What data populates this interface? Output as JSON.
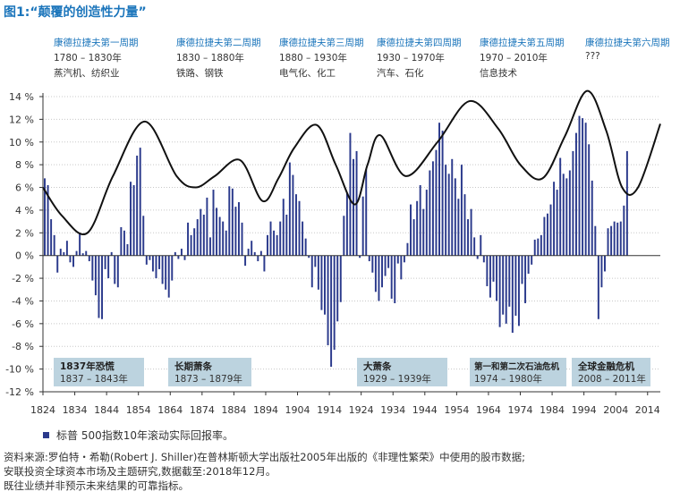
{
  "figure_title": "图1:“颠覆的创造性力量”",
  "waves": [
    {
      "name": "康德拉捷夫第一周期",
      "years": "1780 – 1830年",
      "industry": "蒸汽机、纺织业"
    },
    {
      "name": "康德拉捷夫第二周期",
      "years": "1830 – 1880年",
      "industry": "铁路、钢铁"
    },
    {
      "name": "康德拉捷夫第三周期",
      "years": "1880 – 1930年",
      "industry": "电气化、化工"
    },
    {
      "name": "康德拉捷夫第四周期",
      "years": "1930 – 1970年",
      "industry": "汽车、石化"
    },
    {
      "name": "康德拉捷夫第五周期",
      "years": "1970 – 2010年",
      "industry": "信息技术"
    },
    {
      "name": "康德拉捷夫第六周期",
      "years": "???",
      "industry": ""
    }
  ],
  "crises": [
    {
      "title": "1837年恐慌",
      "years": "1837 – 1843年"
    },
    {
      "title": "长期萧条",
      "years": "1873 – 1879年"
    },
    {
      "title": "大萧条",
      "years": "1929 – 1939年"
    },
    {
      "title": "第一和第二次石油危机",
      "years": "1974 – 1980年"
    },
    {
      "title": "全球金融危机",
      "years": "2008 – 2011年"
    }
  ],
  "legend": "标普 500指数10年滚动实际回报率。",
  "source_lines": [
    "资料来源:罗伯特・希勒(Robert J. Shiller)在普林斯顿大学出版社2005年出版的《非理性繁荣》中使用的股市数据;",
    "安联投资全球资本市场及主题研究,数据截至:2018年12月。",
    "既往业绩并非预示未来结果的可靠指标。"
  ],
  "colors": {
    "bars": "#2b3a8c",
    "curve": "#111111",
    "title": "#1b75bb",
    "crisis_box": "#bcd3df"
  },
  "chart_data": {
    "type": "bar",
    "series": [
      {
        "name": "标普 500指数10年滚动实际回报率。",
        "x_start": 1824,
        "values": [
          6.8,
          6.2,
          3.2,
          1.8,
          -1.5,
          0.6,
          0.3,
          1.3,
          -0.6,
          -1.0,
          0.4,
          2.0,
          0.2,
          0.4,
          -0.5,
          -2.2,
          -3.5,
          -5.5,
          -5.6,
          -1.2,
          -2.0,
          0.3,
          -2.5,
          -2.8,
          2.5,
          2.2,
          1.0,
          6.5,
          6.2,
          8.8,
          9.5,
          3.5,
          -0.8,
          -0.4,
          -1.4,
          -2.0,
          -1.2,
          -2.5,
          -3.0,
          -3.7,
          -2.2,
          0.3,
          -0.3,
          0.6,
          -0.4,
          2.9,
          1.8,
          2.4,
          3.2,
          4.1,
          3.6,
          5.1,
          1.6,
          5.8,
          4.2,
          3.4,
          3.0,
          2.2,
          6.1,
          5.9,
          4.3,
          4.7,
          2.9,
          -0.9,
          0.6,
          1.3,
          0.3,
          -0.5,
          0.4,
          -1.4,
          1.8,
          3.0,
          2.2,
          1.8,
          3.0,
          5.0,
          3.6,
          8.2,
          7.1,
          5.4,
          4.8,
          3.0,
          1.5,
          -0.2,
          -2.8,
          -1.0,
          -3.0,
          -4.8,
          -5.2,
          -7.9,
          -9.8,
          -8.3,
          -5.8,
          -4.1,
          3.5,
          5.5,
          10.8,
          8.5,
          9.2,
          -0.2,
          5.2,
          7.6,
          -0.5,
          -1.5,
          -3.2,
          -4.0,
          -2.8,
          -1.8,
          -1.1,
          -3.8,
          -4.2,
          -0.7,
          -2.1,
          -0.6,
          1.1,
          4.5,
          3.2,
          4.8,
          6.2,
          4.1,
          5.8,
          7.5,
          8.3,
          9.3,
          11.7,
          11.0,
          8.0,
          7.2,
          8.5,
          6.8,
          5.0,
          8.0,
          5.4,
          3.2,
          4.1,
          1.6,
          -0.3,
          1.8,
          -0.6,
          -2.7,
          -3.7,
          -2.3,
          -4.0,
          -6.3,
          -5.2,
          -6.0,
          -4.5,
          -6.8,
          -5.3,
          -6.2,
          -2.5,
          -4.2,
          -1.6,
          -0.8,
          1.4,
          1.5,
          1.8,
          3.4,
          3.7,
          4.5,
          6.5,
          5.8,
          8.6,
          7.2,
          6.8,
          7.5,
          9.2,
          10.8,
          12.3,
          12.1,
          11.7,
          9.8,
          6.6,
          2.6,
          -5.6,
          -2.8,
          -1.4,
          2.4,
          2.6,
          3.0,
          2.9,
          3.0,
          4.4,
          9.2
        ]
      }
    ],
    "ylim": [
      -12,
      14
    ],
    "yticks": [
      "14 %",
      "12 %",
      "10 %",
      "8 %",
      "6 %",
      "4 %",
      "2 %",
      "0 %",
      "-2 %",
      "-4 %",
      "-6 %",
      "-8 %",
      "-10 %",
      "-12 %"
    ],
    "xticks": [
      "1824",
      "1834",
      "1844",
      "1854",
      "1864",
      "1874",
      "1884",
      "1894",
      "1904",
      "1914",
      "1924",
      "1934",
      "1944",
      "1954",
      "1964",
      "1974",
      "1984",
      "1994",
      "2004",
      "2014"
    ],
    "xlim": [
      1824,
      2018
    ],
    "curve": {
      "x": [
        1824,
        1830,
        1838,
        1846,
        1856,
        1866,
        1872,
        1878,
        1886,
        1893,
        1898,
        1903,
        1910,
        1916,
        1922,
        1926,
        1930,
        1938,
        1948,
        1958,
        1967,
        1974,
        1981,
        1988,
        1995,
        2001,
        2006,
        2011,
        2018
      ],
      "y": [
        6.0,
        3.5,
        2.0,
        7.0,
        11.8,
        7.0,
        6.0,
        7.0,
        8.4,
        4.8,
        6.8,
        9.5,
        11.5,
        8.0,
        4.5,
        8.0,
        10.6,
        7.0,
        10.0,
        13.6,
        11.2,
        8.0,
        6.8,
        10.5,
        14.5,
        11.0,
        6.0,
        6.0,
        11.6
      ]
    }
  }
}
